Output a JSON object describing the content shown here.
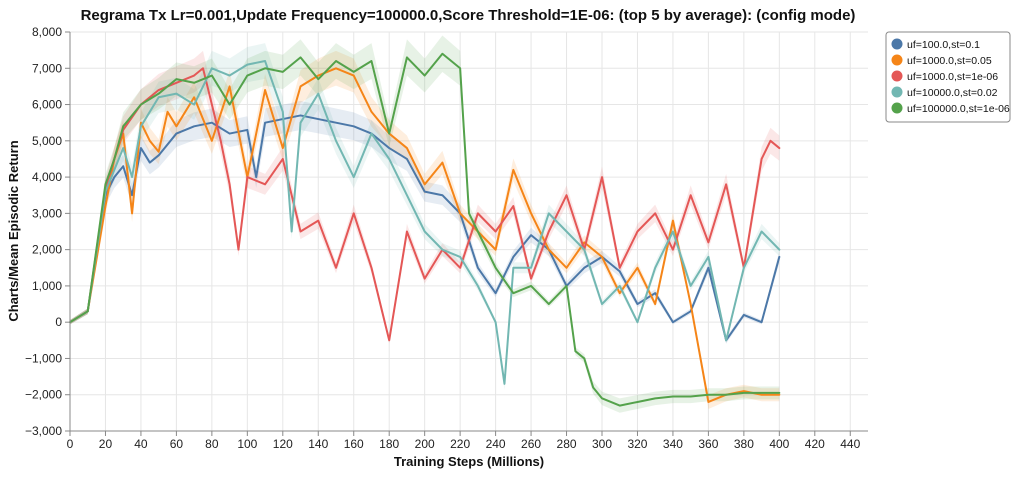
{
  "chart_data": {
    "type": "line",
    "title": "Regrama Tx Lr=0.001,Update Frequency=100000.0,Score Threshold=1E-06: (top 5 by average): (config mode)",
    "xlabel": "Training Steps (Millions)",
    "ylabel": "Charts/Mean Episodic Return",
    "xlim": [
      0,
      450
    ],
    "ylim": [
      -3000,
      8000
    ],
    "x_ticks": [
      0,
      20,
      40,
      60,
      80,
      100,
      120,
      140,
      160,
      180,
      200,
      220,
      240,
      260,
      280,
      300,
      320,
      340,
      360,
      380,
      400,
      420,
      440
    ],
    "y_ticks": [
      -3000,
      -2000,
      -1000,
      0,
      1000,
      2000,
      3000,
      4000,
      5000,
      6000,
      7000,
      8000
    ],
    "y_tick_labels": [
      "−3,000",
      "−2,000",
      "−1,000",
      "0",
      "1,000",
      "2,000",
      "3,000",
      "4,000",
      "5,000",
      "6,000",
      "7,000",
      "8,000"
    ],
    "grid": true,
    "legend_position": "top-right outside",
    "series": [
      {
        "name": "uf=100.0,st=0.1",
        "color": "#4c78a8",
        "x": [
          0,
          10,
          20,
          25,
          30,
          35,
          40,
          45,
          50,
          60,
          70,
          80,
          90,
          100,
          105,
          110,
          120,
          130,
          140,
          150,
          160,
          170,
          180,
          190,
          200,
          210,
          220,
          230,
          240,
          250,
          260,
          270,
          280,
          290,
          300,
          310,
          320,
          330,
          340,
          350,
          360,
          370,
          380,
          390,
          400
        ],
        "y": [
          0,
          300,
          3500,
          4000,
          4300,
          3500,
          4800,
          4400,
          4600,
          5200,
          5400,
          5500,
          5200,
          5300,
          4000,
          5500,
          5600,
          5700,
          5600,
          5500,
          5400,
          5200,
          4800,
          4500,
          3600,
          3500,
          3000,
          1500,
          800,
          1800,
          2400,
          2000,
          1000,
          1500,
          1800,
          1400,
          500,
          800,
          0,
          300,
          1500,
          -500,
          200,
          0,
          1800
        ]
      },
      {
        "name": "uf=1000.0,st=0.05",
        "color": "#f58518",
        "x": [
          0,
          10,
          20,
          25,
          30,
          35,
          40,
          45,
          50,
          55,
          60,
          70,
          80,
          90,
          100,
          110,
          120,
          130,
          140,
          150,
          160,
          170,
          180,
          190,
          200,
          210,
          220,
          230,
          240,
          250,
          260,
          270,
          280,
          290,
          300,
          310,
          320,
          330,
          340,
          350,
          360,
          370,
          380,
          390,
          400
        ],
        "y": [
          0,
          300,
          3200,
          4500,
          5200,
          3000,
          5500,
          5000,
          4700,
          5800,
          5400,
          6200,
          5000,
          6500,
          4000,
          6400,
          4800,
          6500,
          6800,
          7000,
          6800,
          5800,
          5200,
          4800,
          3800,
          4400,
          3000,
          2500,
          2000,
          4200,
          3000,
          2000,
          1500,
          2200,
          1800,
          800,
          1500,
          500,
          2800,
          500,
          -2200,
          -2000,
          -1900,
          -2000,
          -2000
        ]
      },
      {
        "name": "uf=1000.0,st=1e-06",
        "color": "#e45756",
        "x": [
          0,
          10,
          20,
          25,
          30,
          40,
          50,
          60,
          70,
          75,
          80,
          85,
          90,
          95,
          100,
          110,
          120,
          130,
          140,
          150,
          160,
          170,
          180,
          190,
          200,
          210,
          220,
          230,
          240,
          250,
          260,
          270,
          280,
          290,
          300,
          310,
          320,
          330,
          340,
          350,
          360,
          370,
          380,
          390,
          395,
          400
        ],
        "y": [
          0,
          300,
          3700,
          4500,
          5300,
          6000,
          6400,
          6600,
          6800,
          7000,
          6000,
          5000,
          3800,
          2000,
          4000,
          3800,
          4500,
          2500,
          2800,
          1500,
          3000,
          1500,
          -500,
          2500,
          1200,
          2000,
          1500,
          3000,
          2500,
          3200,
          1200,
          2500,
          3500,
          2000,
          4000,
          1500,
          2500,
          3000,
          2000,
          3500,
          2200,
          3800,
          1500,
          4500,
          5000,
          4800
        ]
      },
      {
        "name": "uf=10000.0,st=0.02",
        "color": "#72b7b2",
        "x": [
          0,
          10,
          20,
          25,
          30,
          35,
          40,
          45,
          50,
          60,
          70,
          80,
          90,
          100,
          110,
          120,
          125,
          130,
          140,
          150,
          160,
          170,
          180,
          190,
          200,
          210,
          220,
          230,
          240,
          245,
          250,
          260,
          270,
          280,
          290,
          300,
          310,
          320,
          330,
          340,
          350,
          360,
          370,
          380,
          390,
          400
        ],
        "y": [
          0,
          300,
          3600,
          4200,
          4800,
          4000,
          5400,
          5800,
          6200,
          6300,
          6000,
          7000,
          6800,
          7100,
          7200,
          5800,
          2500,
          5500,
          6300,
          5000,
          4000,
          5200,
          4500,
          3500,
          2500,
          2000,
          1800,
          1000,
          0,
          -1700,
          1500,
          1500,
          3000,
          2500,
          2000,
          500,
          1000,
          0,
          1500,
          2500,
          1000,
          1800,
          -500,
          1500,
          2500,
          2000
        ]
      },
      {
        "name": "uf=100000.0,st=1e-06",
        "color": "#54a24b",
        "x": [
          0,
          10,
          20,
          25,
          30,
          40,
          50,
          60,
          70,
          80,
          90,
          100,
          110,
          120,
          130,
          140,
          150,
          160,
          170,
          180,
          190,
          200,
          210,
          220,
          225,
          230,
          240,
          250,
          260,
          270,
          280,
          285,
          290,
          295,
          300,
          310,
          320,
          330,
          340,
          350,
          360,
          370,
          380,
          390,
          400
        ],
        "y": [
          0,
          300,
          3800,
          4500,
          5400,
          6000,
          6300,
          6700,
          6600,
          6800,
          6000,
          6800,
          7000,
          6900,
          7300,
          6700,
          7200,
          6900,
          7200,
          5200,
          7300,
          6800,
          7400,
          7000,
          3000,
          2500,
          1500,
          800,
          1000,
          500,
          1000,
          -800,
          -1000,
          -1800,
          -2100,
          -2300,
          -2200,
          -2100,
          -2050,
          -2050,
          -2000,
          -2000,
          -1950,
          -1950,
          -1950
        ]
      }
    ]
  }
}
